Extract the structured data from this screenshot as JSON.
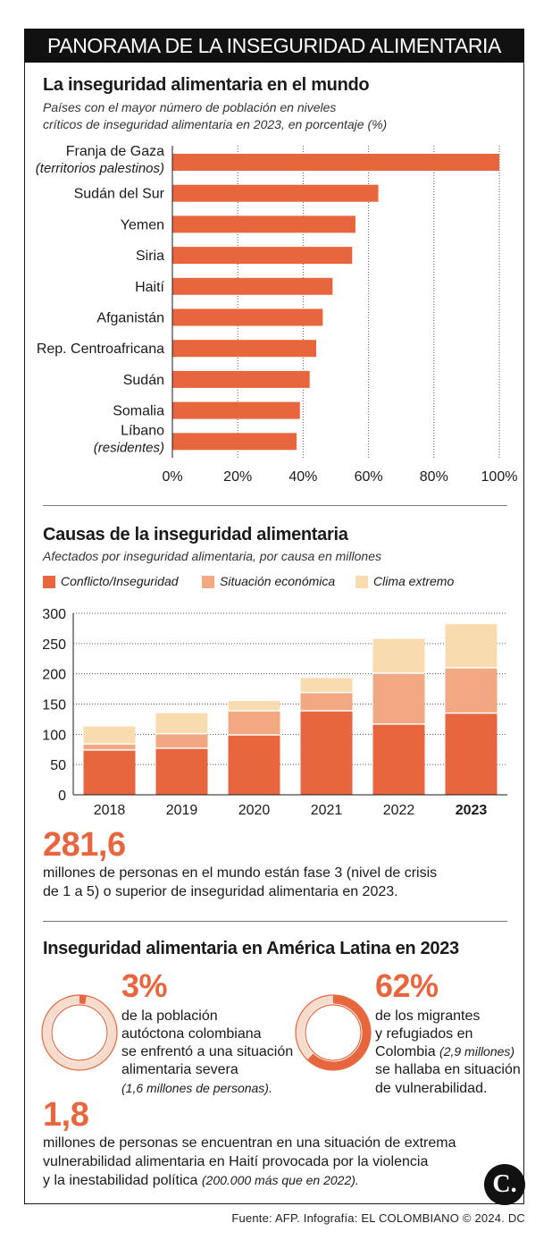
{
  "header": {
    "title": "PANORAMA DE LA INSEGURIDAD ALIMENTARIA"
  },
  "section1": {
    "title": "La inseguridad alimentaria en el mundo",
    "subtitle_line1": "Países con el mayor número de población en niveles",
    "subtitle_line2": "críticos de inseguridad alimentaria en 2023, en porcentaje (%)"
  },
  "hbar": {
    "type": "bar",
    "orientation": "horizontal",
    "xlim": [
      0,
      100
    ],
    "ticks": [
      "0%",
      "20%",
      "40%",
      "60%",
      "80%",
      "100%"
    ],
    "tick_values": [
      0,
      20,
      40,
      60,
      80,
      100
    ],
    "color": "#e8663d",
    "items": [
      {
        "label": "Franja de Gaza",
        "note": "(territorios palestinos)",
        "value": 100
      },
      {
        "label": "Sudán del Sur",
        "note": "",
        "value": 63
      },
      {
        "label": "Yemen",
        "note": "",
        "value": 56
      },
      {
        "label": "Siria",
        "note": "",
        "value": 55
      },
      {
        "label": "Haití",
        "note": "",
        "value": 49
      },
      {
        "label": "Afganistán",
        "note": "",
        "value": 46
      },
      {
        "label": "Rep. Centroafricana",
        "note": "",
        "value": 44
      },
      {
        "label": "Sudán",
        "note": "",
        "value": 42
      },
      {
        "label": "Somalia",
        "note": "",
        "value": 39
      },
      {
        "label": "Líbano",
        "note": "(residentes)",
        "value": 38
      }
    ]
  },
  "section2": {
    "title": "Causas de la inseguridad alimentaria",
    "subtitle": "Afectados por inseguridad alimentaria, por causa en millones"
  },
  "legend": [
    {
      "name": "Conflicto/Inseguridad",
      "color": "#e8663d"
    },
    {
      "name": "Situación económica",
      "color": "#f2a880"
    },
    {
      "name": "Clima extremo",
      "color": "#f8dcb0"
    }
  ],
  "stacked": {
    "type": "bar",
    "stacked": true,
    "ylim": [
      0,
      300
    ],
    "yticks": [
      "0",
      "50",
      "100",
      "150",
      "200",
      "250",
      "300"
    ],
    "ytick_values": [
      0,
      50,
      100,
      150,
      200,
      250,
      300
    ],
    "categories": [
      "2018",
      "2019",
      "2020",
      "2021",
      "2022",
      "2023"
    ],
    "highlight_category": "2023",
    "series": [
      {
        "name": "Conflicto/Inseguridad",
        "color": "#e8663d",
        "values": [
          74,
          77,
          99,
          139,
          117,
          135
        ]
      },
      {
        "name": "Situación económica",
        "color": "#f2a880",
        "values": [
          10,
          24,
          40,
          30,
          84,
          75
        ]
      },
      {
        "name": "Clima extremo",
        "color": "#f8dcb0",
        "values": [
          29,
          34,
          16,
          24,
          57,
          72
        ]
      }
    ]
  },
  "stat1": {
    "value": "281,6",
    "line1": "millones de personas en el mundo están fase 3 (nivel de crisis",
    "line2": "de 1 a 5) o superior de inseguridad alimentaria en 2023."
  },
  "section3": {
    "title": "Inseguridad alimentaria en América Latina en 2023"
  },
  "donut1": {
    "value": "3%",
    "percent": 3,
    "line1": "de la población",
    "line2": "autóctona colombiana",
    "line3": "se enfrentó a una situación",
    "line4": "alimentaria severa",
    "line5": "(1,6 millones de personas)."
  },
  "donut2": {
    "value": "62%",
    "percent": 62,
    "line1": "de los migrantes",
    "line2": "y refugiados en",
    "line3a": "Colombia",
    "line3b": "(2,9 millones)",
    "line4": "se hallaba en situación",
    "line5": "de vulnerabilidad."
  },
  "stat2": {
    "value": "1,8",
    "line1": "millones de personas se encuentran en una situación de extrema",
    "line2": "vulnerabilidad alimentaria en Haití provocada por la violencia",
    "line3a": "y la inestabilidad política",
    "line3b": "(200.000 más que en 2022)."
  },
  "logo": {
    "text": "C."
  },
  "footer": {
    "source": "Fuente: AFP. Infografía: EL COLOMBIANO © 2024. DC"
  },
  "colors": {
    "accent": "#e8663d",
    "mid": "#f2a880",
    "light": "#f8dcb0",
    "ring_bg": "#f6dccd"
  }
}
